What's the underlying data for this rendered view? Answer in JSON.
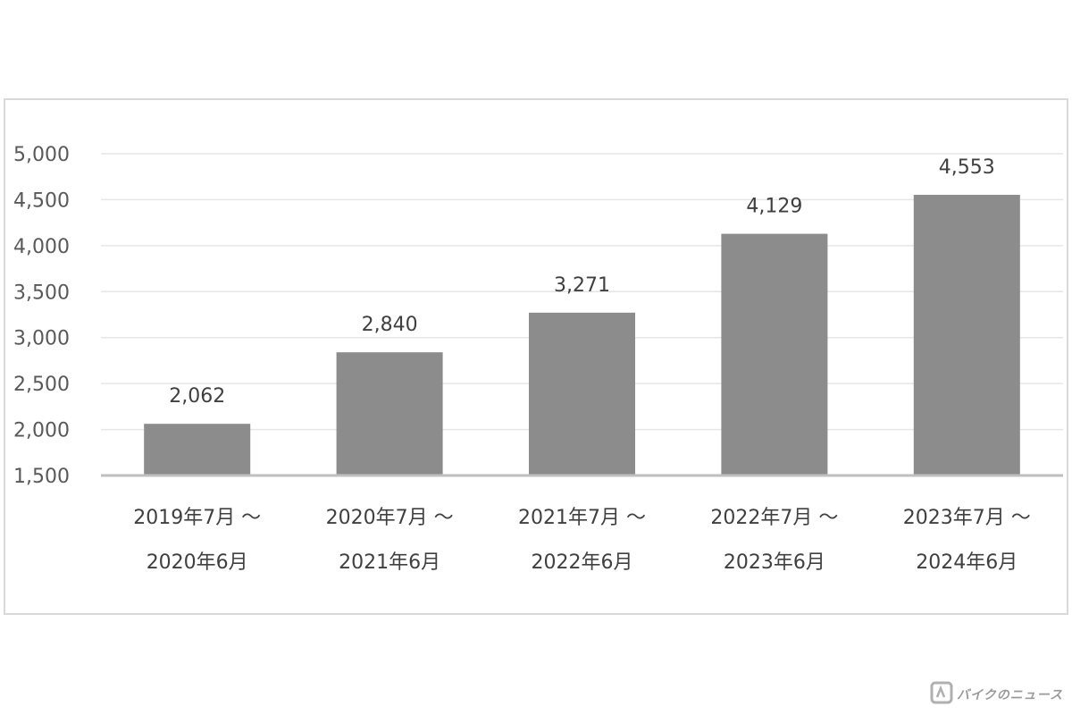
{
  "chart_data": {
    "type": "bar",
    "categories": [
      [
        "2019年7月 ～",
        "2020年6月"
      ],
      [
        "2020年7月 ～",
        "2021年6月"
      ],
      [
        "2021年7月 ～",
        "2022年6月"
      ],
      [
        "2022年7月 ～",
        "2023年6月"
      ],
      [
        "2023年7月 ～",
        "2024年6月"
      ]
    ],
    "values": [
      2062,
      2840,
      3271,
      4129,
      4553
    ],
    "data_labels": [
      "2,062",
      "2,840",
      "3,271",
      "4,129",
      "4,553"
    ],
    "ylim": [
      1500,
      5000
    ],
    "yticks": [
      1500,
      2000,
      2500,
      3000,
      3500,
      4000,
      4500,
      5000
    ],
    "ytick_labels": [
      "1,500",
      "2,000",
      "2,500",
      "3,000",
      "3,500",
      "4,000",
      "4,500",
      "5,000"
    ],
    "grid": true,
    "legend": "none",
    "title": "",
    "xlabel": "",
    "ylabel": "",
    "colors": {
      "bar": "#8c8c8c",
      "gridline": "#e6e6e6",
      "axis": "#bfbfbf",
      "frame": "#d9d9d9"
    }
  },
  "watermark": {
    "text": "バイクのニュース",
    "icon": "logo-icon"
  }
}
